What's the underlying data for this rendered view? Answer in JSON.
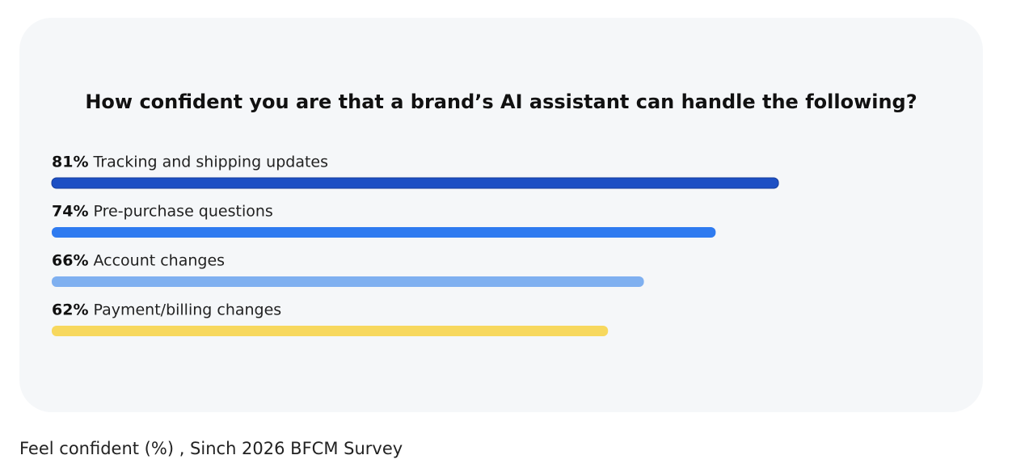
{
  "chart_data": {
    "type": "hbar",
    "title": "How confident you are that a brand’s AI assistant can handle the following?",
    "categories": [
      "Tracking and shipping updates",
      "Pre-purchase questions",
      "Account changes",
      "Payment/billing changes"
    ],
    "values": [
      81,
      74,
      66,
      62
    ],
    "value_labels": [
      "81%",
      "74%",
      "66%",
      "62%"
    ],
    "colors": [
      "#1c4fc4",
      "#2f7bf0",
      "#7fb0f0",
      "#f7d85e"
    ],
    "xlim": [
      0,
      100
    ],
    "caption": "Feel confident (%) , Sinch 2026 BFCM Survey"
  }
}
